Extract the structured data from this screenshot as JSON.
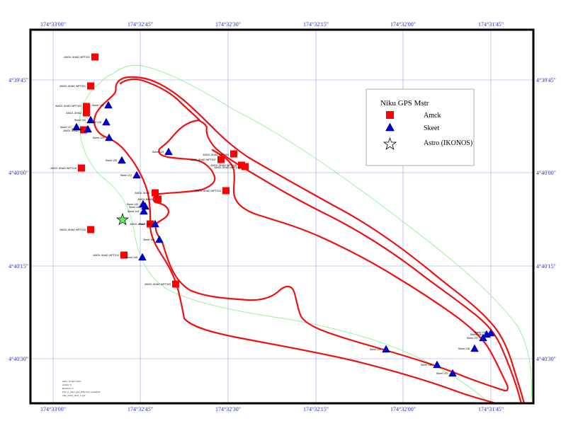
{
  "map": {
    "grid_color": "#9999ee",
    "coast_color": "#ee1111",
    "reef_color": "#88ee88",
    "amck_color": "#ff0000",
    "skeet_color": "#0000cc",
    "astro_color": "#66ee66"
  },
  "axis_labels": {
    "longitudes": [
      "174°33'00\"",
      "174°32'45\"",
      "174°32'30\"",
      "174°32'15\"",
      "174°32'00\"",
      "174°31'45\""
    ],
    "latitudes": [
      "4°39'45\"",
      "4°40'00\"",
      "4°40'15\"",
      "4°40'30\""
    ]
  },
  "legend": {
    "title": "Niku GPS Mstr",
    "items": [
      {
        "label": "Amck",
        "symbol": "square"
      },
      {
        "label": "Skeet",
        "symbol": "triangle"
      },
      {
        "label": "Astro (IKONOS)",
        "symbol": "star"
      }
    ]
  },
  "amck_points": [
    {
      "label": "AMCK JIHAD WPT002"
    },
    {
      "label": "AMCK JIHAD WPT001"
    },
    {
      "label": "AMCK JIHAD WPT003"
    },
    {
      "label": "AMCK JIHAD"
    },
    {
      "label": "AMCK JIHAD"
    },
    {
      "label": "AMCK JIHAD WPT016"
    },
    {
      "label": "AMCK JIHAD WPT015"
    },
    {
      "label": "AMCK JIHAD WPT014"
    },
    {
      "label": "AMCK JIHAD WPT003"
    },
    {
      "label": "AMCK JIHAD WPT013"
    },
    {
      "label": "AMCK JIHAD WPT007"
    },
    {
      "label": "AMCK JIHAD WPT005"
    },
    {
      "label": "AMCK JIHAD WPT008"
    },
    {
      "label": "AMCK JIHAD WPT010"
    },
    {
      "label": "AMCK JIHAD"
    },
    {
      "label": "AMCK JIHAD"
    },
    {
      "label": "AMCK JIHAD"
    }
  ],
  "skeet_points": [
    {
      "label": "Skeet 133"
    },
    {
      "label": "Skeet 134"
    },
    {
      "label": "Skeet 128"
    },
    {
      "label": "Skeet 127"
    },
    {
      "label": "Skeet 126"
    },
    {
      "label": "Skeet 129"
    },
    {
      "label": "Skeet 125"
    },
    {
      "label": "Skeet 123"
    },
    {
      "label": "Skeet 122"
    },
    {
      "label": "Skeet 142"
    },
    {
      "label": "Skeet 144"
    },
    {
      "label": "Skeet 143"
    },
    {
      "label": "Skeet 118"
    },
    {
      "label": "Skeet 119"
    },
    {
      "label": "Skeet 108"
    },
    {
      "label": "Skeet 139"
    },
    {
      "label": "Skeet 140"
    },
    {
      "label": "Skeet 141"
    },
    {
      "label": "Skeet 138"
    },
    {
      "label": "Skeet 137"
    },
    {
      "label": "Skeet 136"
    },
    {
      "label": "Skeet 135"
    }
  ],
  "notes": [
    "Date: 19-Apr-2004",
    "Author: jt",
    "Revision: 0",
    "File: jt_skeet_gps_preferred_combined",
    "niku_amck_skeet_1.wpt"
  ]
}
